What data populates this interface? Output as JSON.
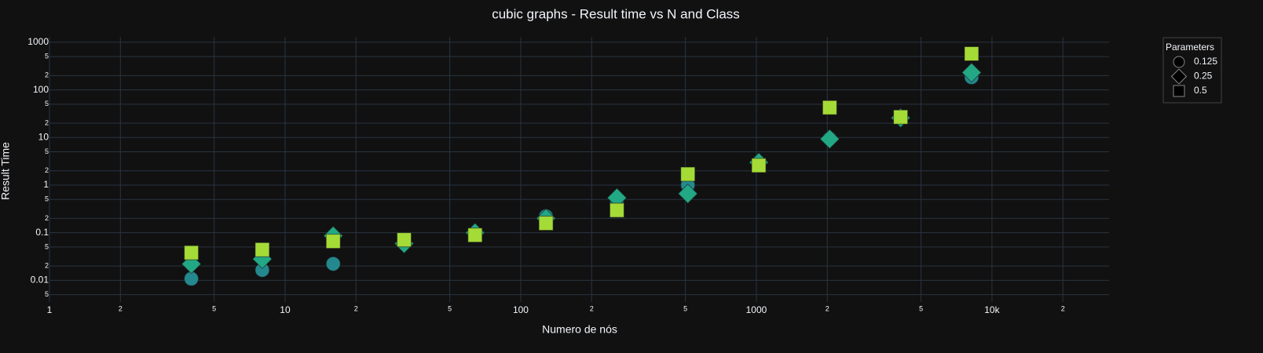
{
  "chart_data": {
    "type": "scatter",
    "title": "cubic graphs - Result time vs N and Class",
    "x_label": "Numero de nós",
    "y_label": "Result Time",
    "legend_title": "Parameters",
    "legend_position": "right",
    "xscale": "log",
    "yscale": "log",
    "grid": true,
    "xlim": [
      1,
      31400
    ],
    "ylim": [
      0.0035,
      1300
    ],
    "xticks": [
      1,
      2,
      5,
      10,
      {
        "value": 20,
        "label": "2"
      },
      {
        "value": 50,
        "label": "5"
      },
      100,
      {
        "value": 200,
        "label": "2"
      },
      {
        "value": 500,
        "label": "5"
      },
      1000,
      {
        "value": 2000,
        "label": "2"
      },
      {
        "value": 5000,
        "label": "5"
      },
      {
        "value": 10000,
        "label": "10k"
      },
      {
        "value": 20000,
        "label": "2"
      }
    ],
    "yticks": [
      {
        "value": 0.005,
        "label": "5"
      },
      0.01,
      {
        "value": 0.02,
        "label": "2"
      },
      {
        "value": 0.05,
        "label": "5"
      },
      0.1,
      {
        "value": 0.2,
        "label": "2"
      },
      {
        "value": 0.5,
        "label": "5"
      },
      1,
      2,
      5,
      10,
      {
        "value": 20,
        "label": "2"
      },
      {
        "value": 50,
        "label": "5"
      },
      100,
      {
        "value": 200,
        "label": "2"
      },
      {
        "value": 500,
        "label": "5"
      },
      1000
    ],
    "x": [
      4,
      8,
      16,
      32,
      64,
      128,
      256,
      512,
      1024,
      2048,
      4096,
      8192
    ],
    "series": [
      {
        "name": "0.125",
        "symbol": "circle",
        "color": "#23898e",
        "values": [
          0.0108,
          0.0164,
          0.0222,
          0.06,
          0.09,
          0.222,
          0.4,
          1.0,
          3.0,
          9.5,
          27,
          184
        ]
      },
      {
        "name": "0.25",
        "symbol": "diamond",
        "color": "#22a884",
        "values": [
          0.022,
          0.028,
          0.086,
          0.059,
          0.1,
          0.2,
          0.54,
          0.66,
          3.0,
          9.3,
          25.9,
          231
        ]
      },
      {
        "name": "0.5",
        "symbol": "square",
        "color": "#a5db36",
        "values": [
          0.038,
          0.044,
          0.066,
          0.071,
          0.089,
          0.158,
          0.296,
          1.7,
          2.59,
          42.5,
          26.9,
          575
        ]
      }
    ]
  }
}
